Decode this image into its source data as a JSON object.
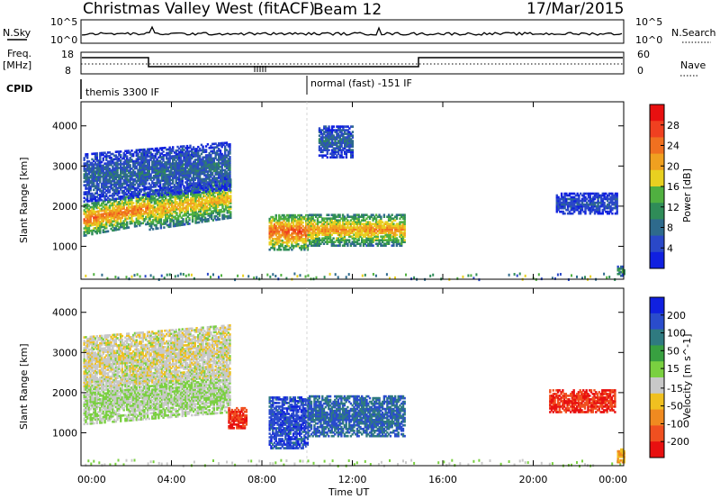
{
  "header": {
    "station": "Christmas Valley West (fitACF)",
    "beam": "Beam 12",
    "date": "17/Mar/2015"
  },
  "strip": {
    "nsky_label": "N.Sky",
    "nsearch_label": "N.Search",
    "nsky_ticks": [
      "10^5",
      "10^0"
    ],
    "nsky_right_ticks": [
      "10^5",
      "10^0"
    ],
    "freq_label_1": "Freq.",
    "freq_label_2": "[MHz]",
    "freq_ticks": [
      "18",
      "8"
    ],
    "nave_label": "Nave",
    "nave_ticks": [
      "60",
      "0"
    ],
    "cpid_label": "CPID",
    "cpid_left": "themis 3300 IF",
    "cpid_right": "normal (fast) -151 IF"
  },
  "axes": {
    "slant_range_label": "Slant Range [km]",
    "time_label": "Time UT",
    "y_ticks": [
      "1000",
      "2000",
      "3000",
      "4000"
    ],
    "x_ticks": [
      "00:00",
      "04:00",
      "08:00",
      "12:00",
      "16:00",
      "20:00",
      "00:00"
    ]
  },
  "colorbars": {
    "power": {
      "label": "Power [dB]",
      "ticks": [
        "4",
        "8",
        "12",
        "16",
        "20",
        "24",
        "28"
      ],
      "colors": [
        "#1020e0",
        "#2a48c8",
        "#2e6a8c",
        "#2f8c58",
        "#50b040",
        "#e8d020",
        "#f0a020",
        "#f07020",
        "#f04020",
        "#e81010"
      ]
    },
    "velocity": {
      "label": "Velocity [m s^-1]",
      "ticks": [
        "200",
        "100",
        "50",
        "15",
        "-15",
        "-50",
        "-100",
        "-200"
      ],
      "colors": [
        "#1020e0",
        "#2a4ccc",
        "#2f7a80",
        "#38a040",
        "#7ad040",
        "#c8c8c8",
        "#f0c020",
        "#f08a20",
        "#f05020",
        "#e81010"
      ]
    }
  },
  "chart_data": [
    {
      "type": "heatmap",
      "title": "Power",
      "xlabel": "Time UT",
      "ylabel": "Slant Range [km]",
      "xlim": [
        0,
        24
      ],
      "ylim": [
        180,
        4600
      ],
      "colorbar": "Power [dB]",
      "clim": [
        0,
        32
      ],
      "regions": [
        {
          "t_start": 0.1,
          "t_end": 3.0,
          "range_low": 1250,
          "range_high": 2050,
          "value_core": 24
        },
        {
          "t_start": 3.0,
          "t_end": 6.6,
          "range_low": 1400,
          "range_high": 2350,
          "value_core": 20
        },
        {
          "t_start": 0.1,
          "t_end": 6.6,
          "range_low": 2100,
          "range_high": 3300,
          "value_core": 8
        },
        {
          "t_start": 8.3,
          "t_end": 10.0,
          "range_low": 900,
          "range_high": 1800,
          "value_core": 26
        },
        {
          "t_start": 10.0,
          "t_end": 14.3,
          "range_low": 1000,
          "range_high": 1800,
          "value_core": 22
        },
        {
          "t_start": 10.5,
          "t_end": 12.0,
          "range_low": 3200,
          "range_high": 4000,
          "value_core": 8
        },
        {
          "t_start": 23.7,
          "t_end": 24.0,
          "range_low": 250,
          "range_high": 500,
          "value_core": 14
        },
        {
          "t_start": 21.0,
          "t_end": 23.7,
          "range_low": 1800,
          "range_high": 2300,
          "value_core": 6
        }
      ]
    },
    {
      "type": "heatmap",
      "title": "Velocity",
      "xlabel": "Time UT",
      "ylabel": "Slant Range [km]",
      "xlim": [
        0,
        24
      ],
      "ylim": [
        180,
        4600
      ],
      "colorbar": "Velocity [m s^-1]",
      "clim": [
        -250,
        250
      ],
      "regions": [
        {
          "t_start": 0.1,
          "t_end": 6.6,
          "range_low": 1200,
          "range_high": 2350,
          "value_core": 0
        },
        {
          "t_start": 0.1,
          "t_end": 6.6,
          "range_low": 2100,
          "range_high": 3400,
          "value_core": -30
        },
        {
          "t_start": 6.5,
          "t_end": 7.3,
          "range_low": 1100,
          "range_high": 1600,
          "value_core": -200
        },
        {
          "t_start": 8.3,
          "t_end": 10.0,
          "range_low": 600,
          "range_high": 1900,
          "value_core": 180
        },
        {
          "t_start": 10.0,
          "t_end": 14.3,
          "range_low": 900,
          "range_high": 1900,
          "value_core": 150
        },
        {
          "t_start": 20.7,
          "t_end": 23.6,
          "range_low": 1500,
          "range_high": 2050,
          "value_core": -200
        },
        {
          "t_start": 23.7,
          "t_end": 24.0,
          "range_low": 250,
          "range_high": 600,
          "value_core": -100
        }
      ]
    }
  ]
}
